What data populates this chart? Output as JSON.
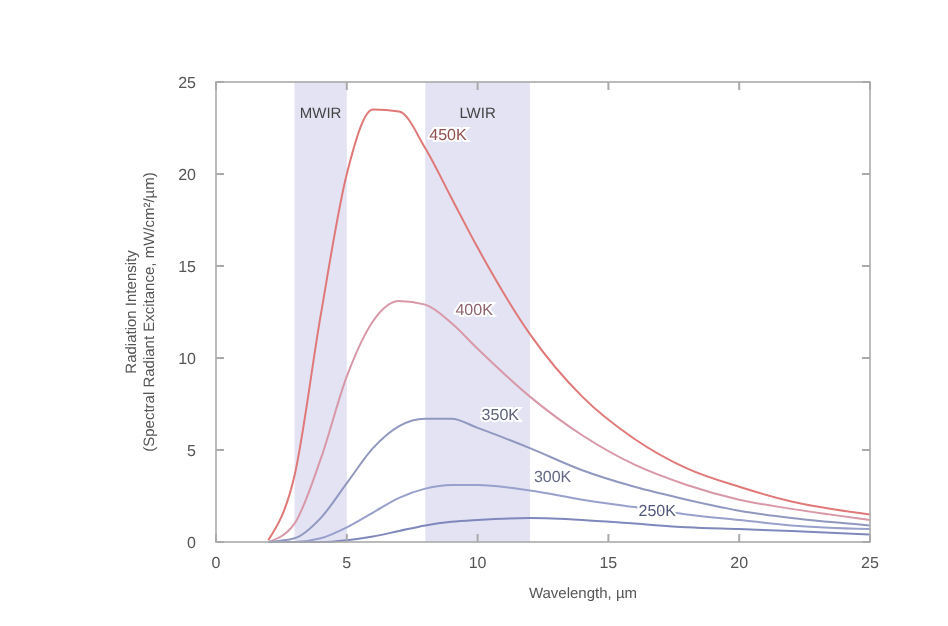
{
  "chart_data": {
    "type": "line",
    "xlabel": "Wavelength, µm",
    "ylabel": "Radiation Intensity\n(Spectral Radiant Excitance, mW/cm²/µm)",
    "x": [
      2,
      3,
      4,
      5,
      6,
      7,
      8,
      9,
      10,
      12,
      14,
      16,
      18,
      20,
      22,
      25
    ],
    "series": [
      {
        "name": "450K",
        "color": "#e07878",
        "values": [
          0.1,
          3.6,
          12.3,
          20.0,
          23.5,
          23.4,
          21.4,
          18.7,
          16.0,
          11.3,
          7.9,
          5.6,
          4.0,
          3.0,
          2.2,
          1.5
        ]
      },
      {
        "name": "400K",
        "color": "#d898a8",
        "values": [
          0.0,
          1.0,
          4.5,
          9.0,
          12.0,
          13.1,
          12.9,
          11.9,
          10.5,
          7.9,
          5.8,
          4.2,
          3.1,
          2.3,
          1.8,
          1.2
        ]
      },
      {
        "name": "350K",
        "color": "#9098c0",
        "values": [
          0.0,
          0.2,
          1.3,
          3.2,
          5.1,
          6.3,
          6.7,
          6.7,
          6.2,
          5.1,
          3.9,
          3.0,
          2.3,
          1.7,
          1.3,
          0.9
        ]
      },
      {
        "name": "300K",
        "color": "#98a0cc",
        "values": [
          0.0,
          0.0,
          0.2,
          0.8,
          1.6,
          2.4,
          2.9,
          3.1,
          3.1,
          2.8,
          2.3,
          1.9,
          1.5,
          1.2,
          0.9,
          0.7
        ]
      },
      {
        "name": "250K",
        "color": "#7f88bc",
        "values": [
          0.0,
          0.0,
          0.0,
          0.1,
          0.3,
          0.6,
          0.9,
          1.1,
          1.2,
          1.3,
          1.2,
          1.0,
          0.8,
          0.7,
          0.6,
          0.4
        ]
      }
    ],
    "bands": [
      {
        "axis": "x",
        "from": 3,
        "to": 5,
        "label": "MWIR",
        "color": "#dcdcf0"
      },
      {
        "axis": "x",
        "from": 8,
        "to": 12,
        "label": "LWIR",
        "color": "#dcdcf0"
      }
    ],
    "xlim": [
      0,
      25
    ],
    "xticks": [
      0,
      5,
      10,
      15,
      20,
      25
    ],
    "ylim": [
      0,
      25
    ],
    "yticks": [
      0,
      5,
      10,
      15,
      20,
      25
    ],
    "grid": false
  }
}
